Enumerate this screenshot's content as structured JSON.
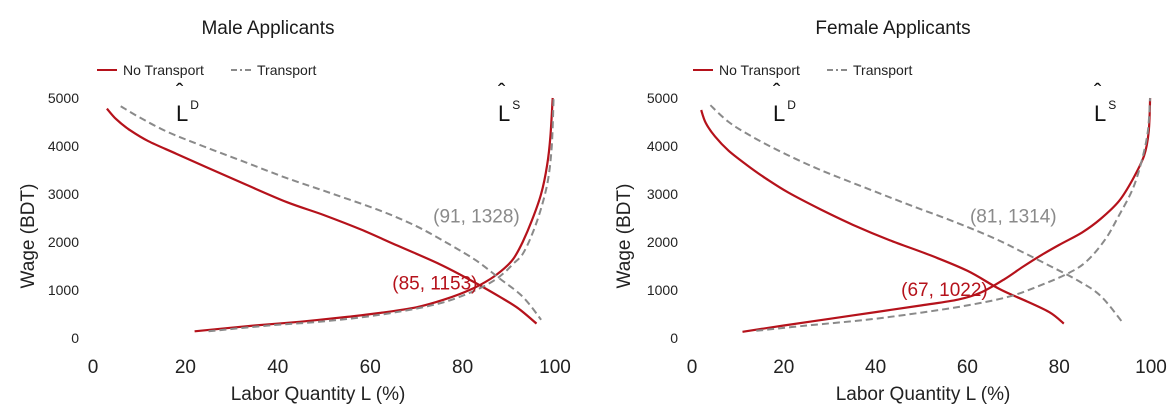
{
  "colors": {
    "no_transport": "#b5121b",
    "transport": "#8a8a8a"
  },
  "legend": {
    "no_transport": "No Transport",
    "transport": "Transport"
  },
  "chart_data": [
    {
      "type": "line",
      "title": "Male Applicants",
      "xlabel": "Labor Quantity L (%)",
      "ylabel": "Wage (BDT)",
      "xlim": [
        0,
        100
      ],
      "ylim": [
        0,
        5000
      ],
      "xticks": [
        "0",
        "20",
        "40",
        "60",
        "80",
        "100"
      ],
      "yticks": [
        "0",
        "1000",
        "2000",
        "3000",
        "4000",
        "5000"
      ],
      "curve_labels": {
        "demand_letter": "L",
        "demand_sup": "D",
        "supply_letter": "L",
        "supply_sup": "S"
      },
      "series": [
        {
          "name": "No Transport",
          "style": "solid",
          "curve": "demand",
          "points": [
            [
              3,
              4780
            ],
            [
              5,
              4560
            ],
            [
              8,
              4330
            ],
            [
              12,
              4100
            ],
            [
              18,
              3840
            ],
            [
              25,
              3540
            ],
            [
              33,
              3200
            ],
            [
              42,
              2830
            ],
            [
              50,
              2560
            ],
            [
              58,
              2260
            ],
            [
              66,
              1920
            ],
            [
              75,
              1540
            ],
            [
              82,
              1190
            ],
            [
              88,
              860
            ],
            [
              92,
              620
            ],
            [
              96,
              300
            ]
          ]
        },
        {
          "name": "No Transport",
          "style": "solid",
          "curve": "supply",
          "points": [
            [
              22,
              140
            ],
            [
              35,
              260
            ],
            [
              45,
              340
            ],
            [
              55,
              440
            ],
            [
              62,
              520
            ],
            [
              70,
              640
            ],
            [
              76,
              800
            ],
            [
              82,
              1020
            ],
            [
              86,
              1230
            ],
            [
              89,
              1450
            ],
            [
              91,
              1650
            ],
            [
              93,
              2000
            ],
            [
              95,
              2450
            ],
            [
              97,
              3000
            ],
            [
              98.3,
              3600
            ],
            [
              99,
              4200
            ],
            [
              99.5,
              5000
            ]
          ]
        },
        {
          "name": "Transport",
          "style": "dashed",
          "curve": "demand",
          "points": [
            [
              6,
              4830
            ],
            [
              10,
              4600
            ],
            [
              16,
              4300
            ],
            [
              24,
              3990
            ],
            [
              33,
              3660
            ],
            [
              42,
              3330
            ],
            [
              52,
              3000
            ],
            [
              62,
              2660
            ],
            [
              70,
              2330
            ],
            [
              77,
              1960
            ],
            [
              83,
              1610
            ],
            [
              88,
              1240
            ],
            [
              93,
              860
            ],
            [
              97,
              380
            ]
          ]
        },
        {
          "name": "Transport",
          "style": "dashed",
          "curve": "supply",
          "points": [
            [
              25,
              140
            ],
            [
              38,
              260
            ],
            [
              48,
              330
            ],
            [
              58,
              430
            ],
            [
              67,
              560
            ],
            [
              75,
              720
            ],
            [
              81,
              920
            ],
            [
              86,
              1150
            ],
            [
              89,
              1360
            ],
            [
              91,
              1550
            ],
            [
              93,
              1750
            ],
            [
              95,
              2150
            ],
            [
              97,
              2700
            ],
            [
              98.5,
              3300
            ],
            [
              99.3,
              4000
            ],
            [
              99.7,
              5000
            ]
          ]
        }
      ],
      "annotations": [
        {
          "text": "(85, 1153)",
          "color": "#b5121b",
          "x": 74,
          "y": 1153
        },
        {
          "text": "(91, 1328)",
          "color": "#8a8a8a",
          "x": 83,
          "y": 2550
        }
      ]
    },
    {
      "type": "line",
      "title": "Female Applicants",
      "xlabel": "Labor Quantity L (%)",
      "ylabel": "Wage (BDT)",
      "xlim": [
        0,
        100
      ],
      "ylim": [
        0,
        5000
      ],
      "xticks": [
        "0",
        "20",
        "40",
        "60",
        "80",
        "100"
      ],
      "yticks": [
        "0",
        "1000",
        "2000",
        "3000",
        "4000",
        "5000"
      ],
      "curve_labels": {
        "demand_letter": "L",
        "demand_sup": "D",
        "supply_letter": "L",
        "supply_sup": "S"
      },
      "series": [
        {
          "name": "No Transport",
          "style": "solid",
          "curve": "demand",
          "points": [
            [
              2,
              4750
            ],
            [
              3,
              4480
            ],
            [
              5,
              4200
            ],
            [
              8,
              3900
            ],
            [
              12,
              3600
            ],
            [
              16,
              3330
            ],
            [
              21,
              3030
            ],
            [
              28,
              2680
            ],
            [
              35,
              2360
            ],
            [
              43,
              2040
            ],
            [
              52,
              1720
            ],
            [
              60,
              1400
            ],
            [
              67,
              1020
            ],
            [
              73,
              760
            ],
            [
              78,
              530
            ],
            [
              81,
              300
            ]
          ]
        },
        {
          "name": "No Transport",
          "style": "solid",
          "curve": "supply",
          "points": [
            [
              11,
              130
            ],
            [
              20,
              260
            ],
            [
              30,
              400
            ],
            [
              40,
              540
            ],
            [
              50,
              680
            ],
            [
              58,
              800
            ],
            [
              63,
              950
            ],
            [
              68,
              1220
            ],
            [
              72,
              1480
            ],
            [
              76,
              1720
            ],
            [
              80,
              1940
            ],
            [
              85,
              2200
            ],
            [
              89,
              2480
            ],
            [
              93,
              2850
            ],
            [
              96,
              3300
            ],
            [
              98.5,
              3800
            ],
            [
              99.5,
              4300
            ],
            [
              99.8,
              5000
            ]
          ]
        },
        {
          "name": "Transport",
          "style": "dashed",
          "curve": "demand",
          "points": [
            [
              4,
              4850
            ],
            [
              8,
              4500
            ],
            [
              13,
              4200
            ],
            [
              20,
              3850
            ],
            [
              28,
              3500
            ],
            [
              38,
              3120
            ],
            [
              48,
              2750
            ],
            [
              58,
              2390
            ],
            [
              66,
              2070
            ],
            [
              72,
              1790
            ],
            [
              78,
              1500
            ],
            [
              84,
              1200
            ],
            [
              89,
              880
            ],
            [
              94,
              300
            ]
          ]
        },
        {
          "name": "Transport",
          "style": "dashed",
          "curve": "supply",
          "points": [
            [
              14,
              150
            ],
            [
              25,
              260
            ],
            [
              38,
              380
            ],
            [
              50,
              530
            ],
            [
              60,
              680
            ],
            [
              69,
              860
            ],
            [
              76,
              1100
            ],
            [
              82,
              1350
            ],
            [
              86,
              1600
            ],
            [
              90,
              2050
            ],
            [
              93,
              2550
            ],
            [
              96,
              3100
            ],
            [
              98,
              3700
            ],
            [
              99.3,
              4300
            ],
            [
              99.8,
              5000
            ]
          ]
        }
      ],
      "annotations": [
        {
          "text": "(67, 1022)",
          "color": "#b5121b",
          "x": 55,
          "y": 1022
        },
        {
          "text": "(81, 1314)",
          "color": "#8a8a8a",
          "x": 70,
          "y": 2550
        }
      ]
    }
  ]
}
